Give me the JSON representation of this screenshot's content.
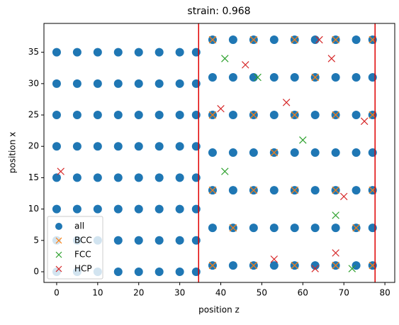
{
  "chart_data": {
    "type": "scatter",
    "title": "strain: 0.968",
    "x_label": "position z",
    "y_label": "position x",
    "xlim": [
      -3.1,
      82.4
    ],
    "ylim": [
      -1.7,
      39.6
    ],
    "xticks": [
      0,
      10,
      20,
      30,
      40,
      50,
      60,
      70,
      80
    ],
    "yticks": [
      0,
      5,
      10,
      15,
      20,
      25,
      30,
      35
    ],
    "legend": "lower left",
    "vlines": [
      34.6,
      77.6
    ],
    "vline_color": "#e00000",
    "series": [
      {
        "name": "all",
        "color": "#1f77b4",
        "marker": "o",
        "x": [
          0,
          0,
          0,
          0,
          0,
          0,
          0,
          0,
          5,
          5,
          5,
          5,
          5,
          5,
          5,
          5,
          10,
          10,
          10,
          10,
          10,
          10,
          10,
          10,
          15,
          15,
          15,
          15,
          15,
          15,
          15,
          15,
          20,
          20,
          20,
          20,
          20,
          20,
          20,
          20,
          25,
          25,
          25,
          25,
          25,
          25,
          25,
          25,
          30,
          30,
          30,
          30,
          30,
          30,
          30,
          30,
          34,
          34,
          34,
          34,
          34,
          34,
          34,
          34,
          38,
          38,
          38,
          38,
          38,
          38,
          38,
          43,
          43,
          43,
          43,
          43,
          43,
          43,
          48,
          48,
          48,
          48,
          48,
          48,
          48,
          53,
          53,
          53,
          53,
          53,
          53,
          53,
          58,
          58,
          58,
          58,
          58,
          58,
          58,
          63,
          63,
          63,
          63,
          63,
          63,
          63,
          68,
          68,
          68,
          68,
          68,
          68,
          68,
          73,
          73,
          73,
          73,
          73,
          73,
          73,
          77,
          77,
          77,
          77,
          77,
          77,
          77
        ],
        "values": [
          0,
          5,
          10,
          15,
          20,
          25,
          30,
          35,
          0,
          5,
          10,
          15,
          20,
          25,
          30,
          35,
          0,
          5,
          10,
          15,
          20,
          25,
          30,
          35,
          0,
          5,
          10,
          15,
          20,
          25,
          30,
          35,
          0,
          5,
          10,
          15,
          20,
          25,
          30,
          35,
          0,
          5,
          10,
          15,
          20,
          25,
          30,
          35,
          0,
          5,
          10,
          15,
          20,
          25,
          30,
          35,
          0,
          5,
          10,
          15,
          20,
          25,
          30,
          35,
          1,
          7,
          13,
          19,
          25,
          31,
          37,
          1,
          7,
          13,
          19,
          25,
          31,
          37,
          1,
          7,
          13,
          19,
          25,
          31,
          37,
          1,
          7,
          13,
          19,
          25,
          31,
          37,
          1,
          7,
          13,
          19,
          25,
          31,
          37,
          1,
          7,
          13,
          19,
          25,
          31,
          37,
          1,
          7,
          13,
          19,
          25,
          31,
          37,
          1,
          7,
          13,
          19,
          25,
          31,
          37,
          1,
          7,
          13,
          19,
          25,
          31,
          37
        ]
      },
      {
        "name": "BCC",
        "color": "#ff7f0e",
        "marker": "x",
        "x": [
          38,
          38,
          38,
          38,
          48,
          48,
          48,
          48,
          58,
          58,
          58,
          58,
          68,
          68,
          68,
          68,
          77,
          77,
          77,
          77,
          43,
          53,
          63,
          73
        ],
        "values": [
          1,
          13,
          25,
          37,
          1,
          13,
          25,
          37,
          1,
          13,
          25,
          37,
          1,
          13,
          25,
          37,
          1,
          13,
          25,
          37,
          7,
          19,
          31,
          7
        ]
      },
      {
        "name": "FCC",
        "color": "#2ca02c",
        "marker": "x",
        "x": [
          41,
          41,
          60,
          68,
          72,
          49
        ],
        "values": [
          34,
          16,
          21,
          9,
          0.5,
          31
        ]
      },
      {
        "name": "HCP",
        "color": "#d62728",
        "marker": "x",
        "x": [
          1,
          40,
          46,
          56,
          64,
          67,
          75,
          70,
          53,
          63,
          68
        ],
        "values": [
          16,
          26,
          33,
          27,
          37,
          34,
          24,
          12,
          2,
          0.5,
          3
        ]
      }
    ]
  }
}
